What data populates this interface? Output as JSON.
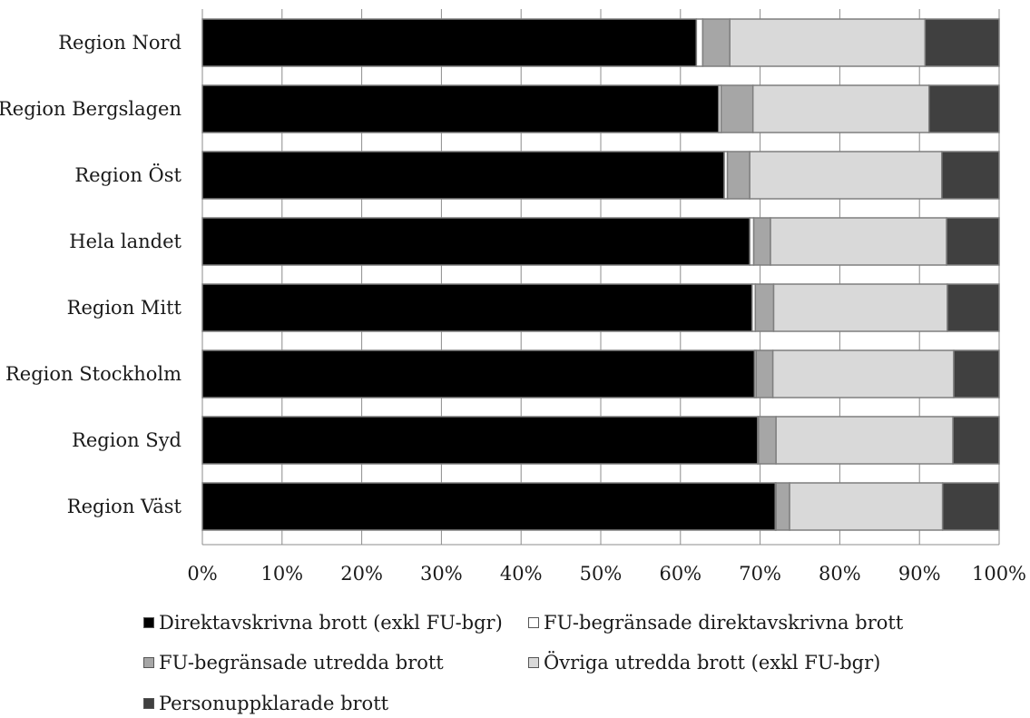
{
  "chart_data": {
    "type": "bar",
    "orientation": "horizontal",
    "stacked": true,
    "categories": [
      "Region Nord",
      "Region Bergslagen",
      "Region Öst",
      "Hela landet",
      "Region Mitt",
      "Region Stockholm",
      "Region Syd",
      "Region Väst"
    ],
    "series": [
      {
        "name": "Direktavskrivna brott (exkl FU-bgr)",
        "color": "#000000",
        "values": [
          62.0,
          64.8,
          65.5,
          68.7,
          69.0,
          69.3,
          69.7,
          71.9
        ]
      },
      {
        "name": "FU-begränsade direktavskrivna brott",
        "color": "#ffffff",
        "values": [
          0.8,
          0.3,
          0.4,
          0.5,
          0.4,
          0.2,
          0.1,
          0.1
        ]
      },
      {
        "name": "FU-begränsade utredda brott",
        "color": "#a6a6a6",
        "values": [
          3.4,
          4.0,
          2.8,
          2.1,
          2.3,
          2.1,
          2.2,
          1.7
        ]
      },
      {
        "name": "Övriga utredda brott (exkl FU-bgr)",
        "color": "#d9d9d9",
        "values": [
          24.5,
          22.1,
          24.1,
          22.1,
          21.8,
          22.7,
          22.2,
          19.2
        ]
      },
      {
        "name": "Personuppklarade brott",
        "color": "#404040",
        "values": [
          9.3,
          8.8,
          7.2,
          6.6,
          6.5,
          5.7,
          5.8,
          7.1
        ]
      }
    ],
    "xlim": [
      0,
      100
    ],
    "xticks": [
      "0%",
      "10%",
      "20%",
      "30%",
      "40%",
      "50%",
      "60%",
      "70%",
      "80%",
      "90%",
      "100%"
    ],
    "grid": true,
    "legend_position": "bottom"
  }
}
